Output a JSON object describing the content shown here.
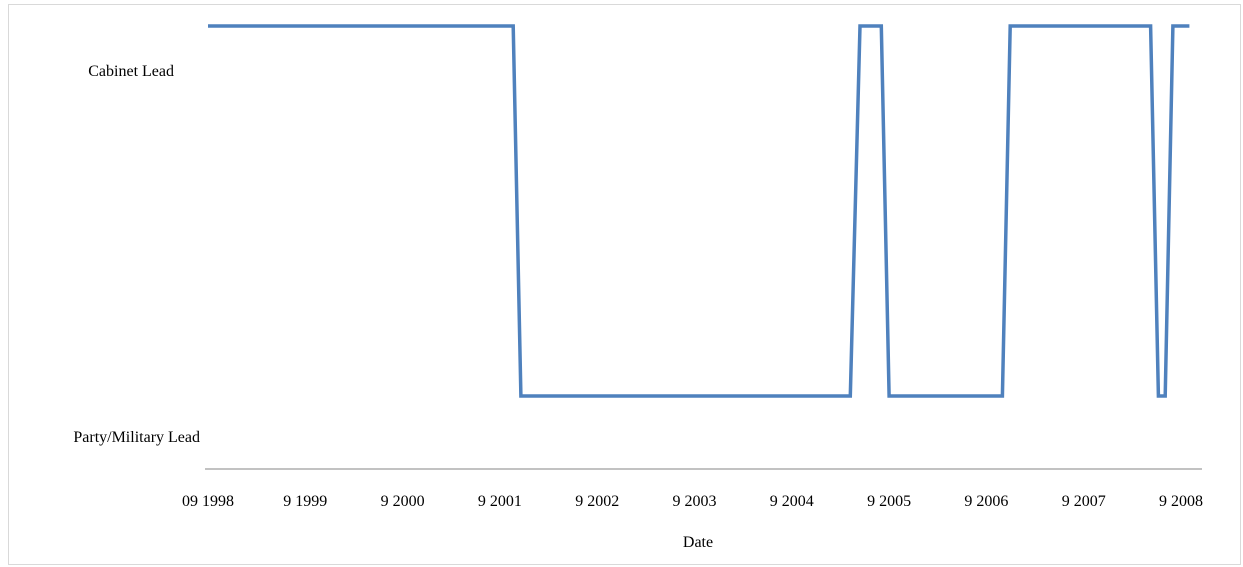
{
  "chart_data": {
    "type": "line",
    "xlabel": "Date",
    "ylabel": "",
    "y_categories": [
      "Party/Military Lead",
      "Cabinet Lead"
    ],
    "x_tick_labels": [
      "09 1998",
      "9 1999",
      "9 2000",
      "9 2001",
      "9 2002",
      "9 2003",
      "9 2004",
      "9 2005",
      "9 2006",
      "9 2007",
      "9 2008"
    ],
    "x_range": [
      1998.75,
      2009.0
    ],
    "grid": false,
    "legend": "none",
    "series": [
      {
        "color": "#4f81bd",
        "x": [
          1998.75,
          2001.9,
          2001.98,
          2005.38,
          2005.48,
          2005.7,
          2005.78,
          2006.95,
          2007.03,
          2008.48,
          2008.56,
          2008.63,
          2008.71,
          2008.88
        ],
        "y": [
          1,
          1,
          0,
          0,
          1,
          1,
          0,
          0,
          1,
          1,
          0,
          0,
          1,
          1
        ]
      }
    ]
  }
}
